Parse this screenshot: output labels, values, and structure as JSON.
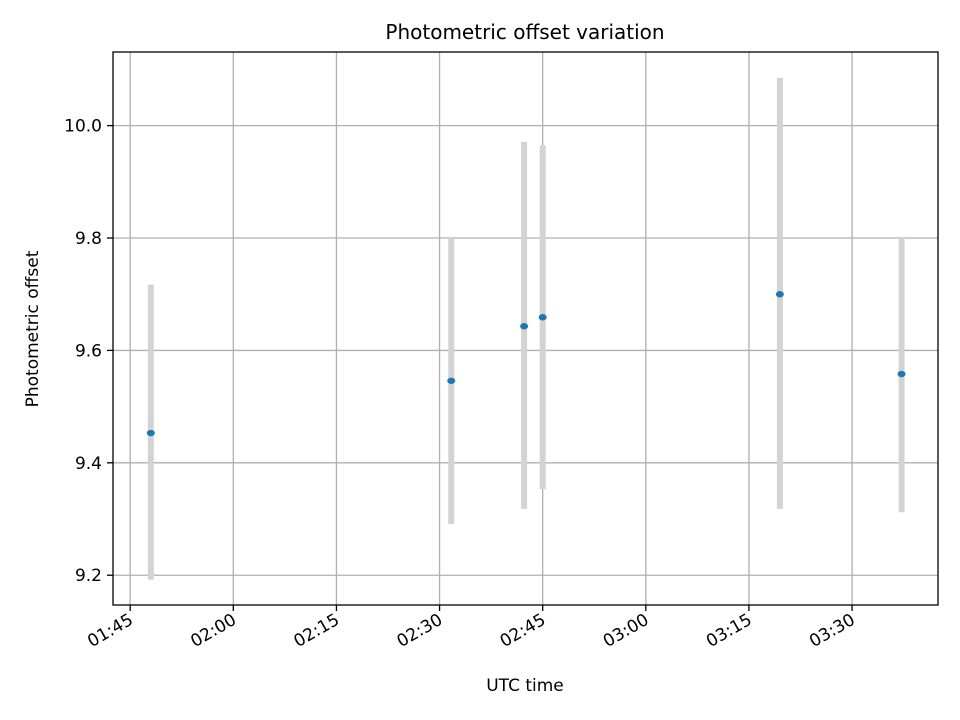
{
  "chart_data": {
    "type": "scatter",
    "title": "Photometric offset variation",
    "xlabel": "UTC time",
    "ylabel": "Photometric offset",
    "grid": true,
    "x_tick_labels": [
      "01:45",
      "02:00",
      "02:15",
      "02:30",
      "02:45",
      "03:00",
      "03:15",
      "03:30"
    ],
    "y_tick_labels": [
      "9.2",
      "9.4",
      "9.6",
      "9.8",
      "10.0"
    ],
    "xlim": [
      "01:42:30",
      "03:42:30"
    ],
    "ylim": [
      9.147,
      10.131
    ],
    "series": [
      {
        "points": [
          {
            "x": "01:48",
            "y": 9.453,
            "ylow": 9.192,
            "yhigh": 9.717
          },
          {
            "x": "02:31.7",
            "y": 9.546,
            "ylow": 9.291,
            "yhigh": 9.8
          },
          {
            "x": "02:42.3",
            "y": 9.643,
            "ylow": 9.318,
            "yhigh": 9.971
          },
          {
            "x": "02:45",
            "y": 9.659,
            "ylow": 9.353,
            "yhigh": 9.965
          },
          {
            "x": "03:19.5",
            "y": 9.7,
            "ylow": 9.318,
            "yhigh": 10.085
          },
          {
            "x": "03:37.2",
            "y": 9.558,
            "ylow": 9.312,
            "yhigh": 9.802
          }
        ]
      }
    ],
    "colors": {
      "marker": "#1f77b4",
      "errorbar": "#d3d3d3",
      "grid": "#b0b0b0",
      "axes": "#000000"
    }
  }
}
